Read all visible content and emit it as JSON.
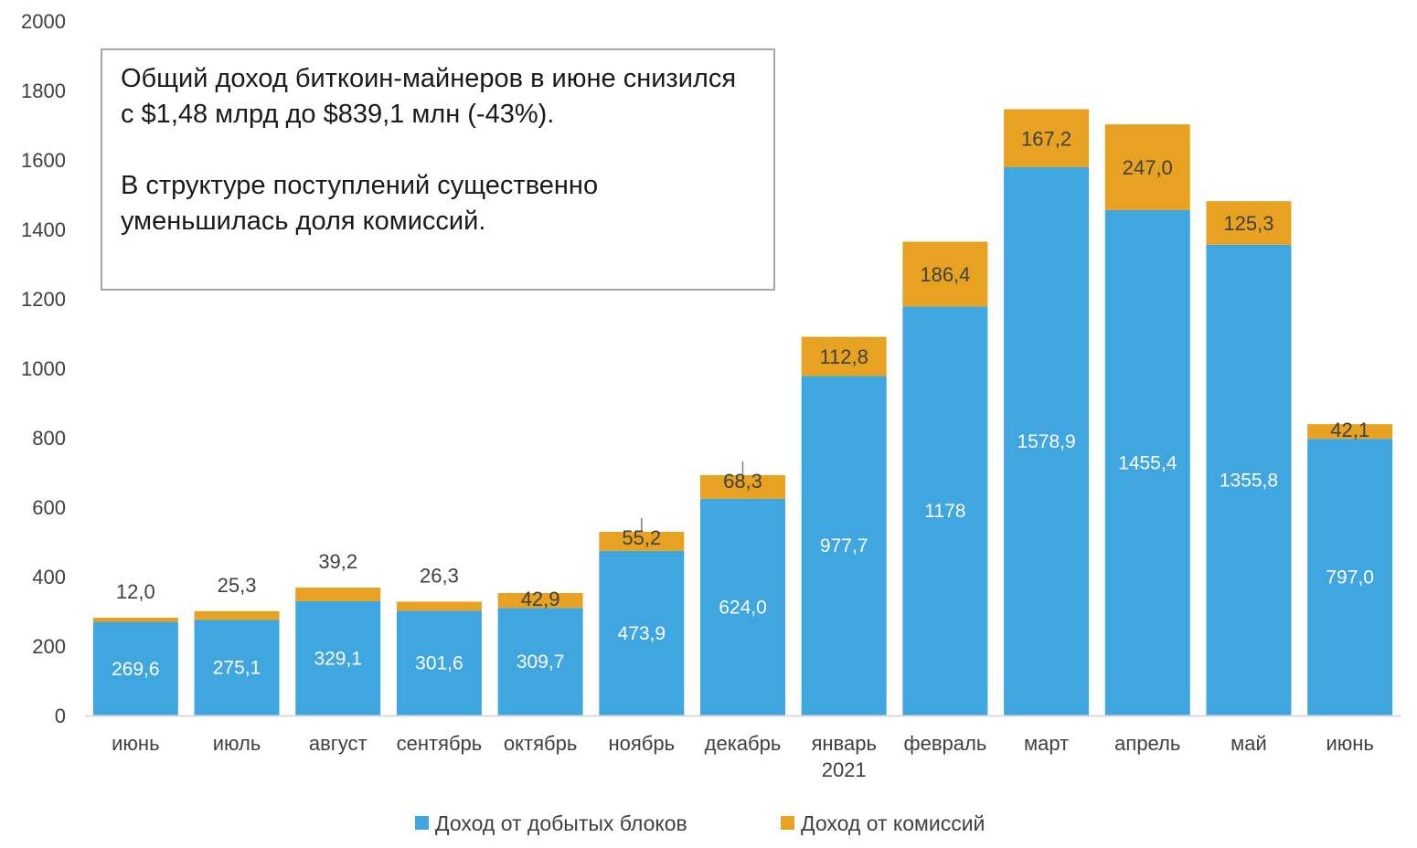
{
  "annotation": {
    "paragraph_1": "Общий доход биткоин-майнеров в июне снизился с $1,48 млрд до $839,1 млн (-43%).",
    "paragraph_2": "В структуре поступлений существенно уменьшилась доля комиссий."
  },
  "colors": {
    "blocks": "#40a6df",
    "fees": "#e8a222",
    "text": "#404040",
    "axis": "#d9d9d9"
  },
  "chart_data": {
    "type": "bar",
    "stacked": true,
    "title": "",
    "xlabel": "",
    "ylabel": "",
    "ylim": [
      0,
      2000
    ],
    "yticks": [
      0,
      200,
      400,
      600,
      800,
      1000,
      1200,
      1400,
      1600,
      1800,
      2000
    ],
    "categories": [
      "июнь",
      "июль",
      "август",
      "сентябрь",
      "октябрь",
      "ноябрь",
      "декабрь",
      "январь 2021",
      "февраль",
      "март",
      "апрель",
      "май",
      "июнь"
    ],
    "series": [
      {
        "name": "Доход от добытых блоков",
        "values": [
          269.6,
          275.1,
          329.1,
          301.6,
          309.7,
          473.9,
          624.0,
          977.7,
          1178,
          1578.9,
          1455.4,
          1355.8,
          797.0
        ],
        "labels": [
          "269,6",
          "275,1",
          "329,1",
          "301,6",
          "309,7",
          "473,9",
          "624,0",
          "977,7",
          "1178",
          "1578,9",
          "1455,4",
          "1355,8",
          "797,0"
        ]
      },
      {
        "name": "Доход от комиссий",
        "values": [
          12.0,
          25.3,
          39.2,
          26.3,
          42.9,
          55.2,
          68.3,
          112.8,
          186.4,
          167.2,
          247.0,
          125.3,
          42.1
        ],
        "labels": [
          "12,0",
          "25,3",
          "39,2",
          "26,3",
          "42,9",
          "55,2",
          "68,3",
          "112,8",
          "186,4",
          "167,2",
          "247,0",
          "125,3",
          "42,1"
        ]
      }
    ],
    "grid": false,
    "legend_position": "bottom"
  }
}
